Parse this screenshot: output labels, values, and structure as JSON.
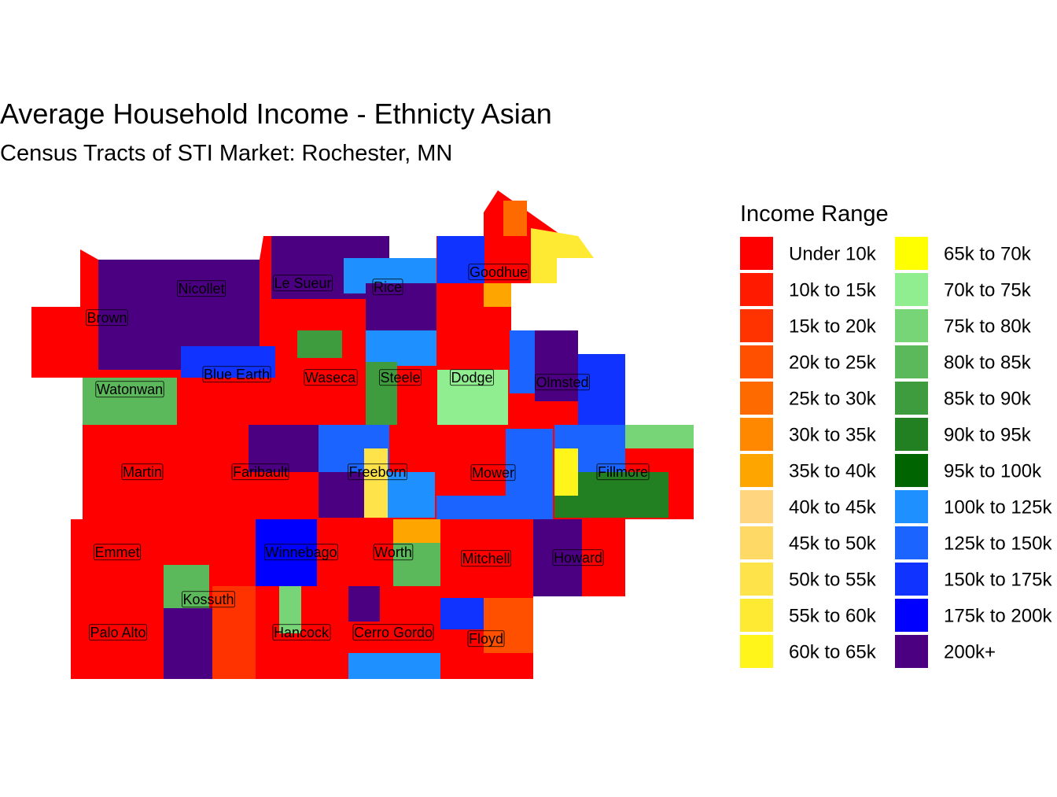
{
  "title": "Average Household Income - Ethnicty Asian",
  "subtitle": "Census Tracts of STI Market: Rochester, MN",
  "legend": {
    "title": "Income Range",
    "items": [
      {
        "label": "Under 10k",
        "color": "#FF0000"
      },
      {
        "label": "10k to 15k",
        "color": "#FF1A00"
      },
      {
        "label": "15k to 20k",
        "color": "#FF3300"
      },
      {
        "label": "20k to 25k",
        "color": "#FF5000"
      },
      {
        "label": "25k to 30k",
        "color": "#FF6A00"
      },
      {
        "label": "30k to 35k",
        "color": "#FF8800"
      },
      {
        "label": "35k to 40k",
        "color": "#FFA500"
      },
      {
        "label": "40k to 45k",
        "color": "#FFD580"
      },
      {
        "label": "45k to 50k",
        "color": "#FFD966"
      },
      {
        "label": "50k to 55k",
        "color": "#FFE34A"
      },
      {
        "label": "55k to 60k",
        "color": "#FFEA33"
      },
      {
        "label": "60k to 65k",
        "color": "#FFF51A"
      },
      {
        "label": "65k to 70k",
        "color": "#FFFF00"
      },
      {
        "label": "70k to 75k",
        "color": "#90EE90"
      },
      {
        "label": "75k to 80k",
        "color": "#77D477"
      },
      {
        "label": "80k to 85k",
        "color": "#5BB85B"
      },
      {
        "label": "85k to 90k",
        "color": "#3E9B3E"
      },
      {
        "label": "90k to 95k",
        "color": "#228022"
      },
      {
        "label": "95k to 100k",
        "color": "#006400"
      },
      {
        "label": "100k to 125k",
        "color": "#1E90FF"
      },
      {
        "label": "125k to 150k",
        "color": "#1C64FF"
      },
      {
        "label": "150k to 175k",
        "color": "#1033FF"
      },
      {
        "label": "175k to 200k",
        "color": "#0000FF"
      },
      {
        "label": "200k+",
        "color": "#4B0082"
      }
    ]
  },
  "counties": [
    "Nicollet",
    "Le Sueur",
    "Rice",
    "Goodhue",
    "Brown",
    "Blue Earth",
    "Waseca",
    "Steele",
    "Dodge",
    "Olmsted",
    "Watonwan",
    "Martin",
    "Faribault",
    "Freeborn",
    "Mower",
    "Fillmore",
    "Emmet",
    "Winnebago",
    "Worth",
    "Mitchell",
    "Howard",
    "Kossuth",
    "Palo Alto",
    "Hancock",
    "Cerro Gordo",
    "Floyd"
  ]
}
